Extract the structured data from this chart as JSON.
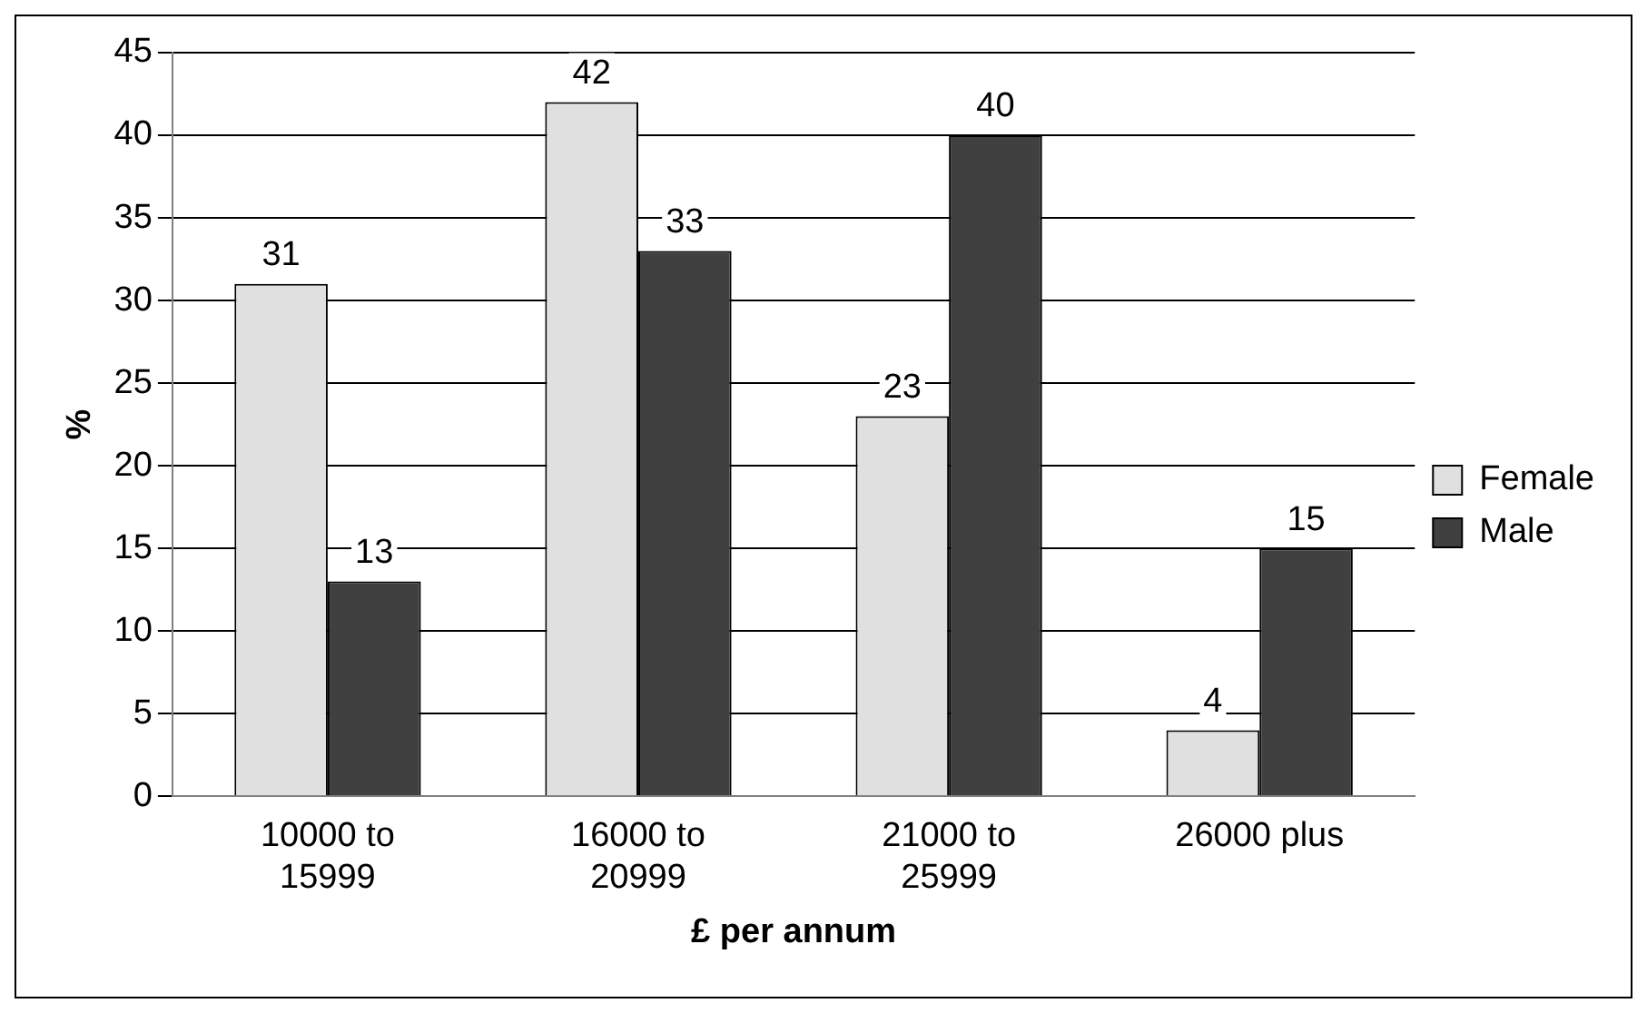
{
  "chart_data": {
    "type": "bar",
    "xlabel": "£ per annum",
    "ylabel": "%",
    "categories": [
      "10000 to 15999",
      "16000 to 20999",
      "21000 to 25999",
      "26000 plus"
    ],
    "series": [
      {
        "name": "Female",
        "color": "#e0e0e0",
        "values": [
          31,
          42,
          23,
          4
        ]
      },
      {
        "name": "Male",
        "color": "#404040",
        "values": [
          13,
          33,
          40,
          15
        ]
      }
    ],
    "ylim": [
      0,
      45
    ],
    "yticks": [
      0,
      5,
      10,
      15,
      20,
      25,
      30,
      35,
      40,
      45
    ],
    "grid": "y",
    "legend": "right",
    "data_labels": true
  }
}
